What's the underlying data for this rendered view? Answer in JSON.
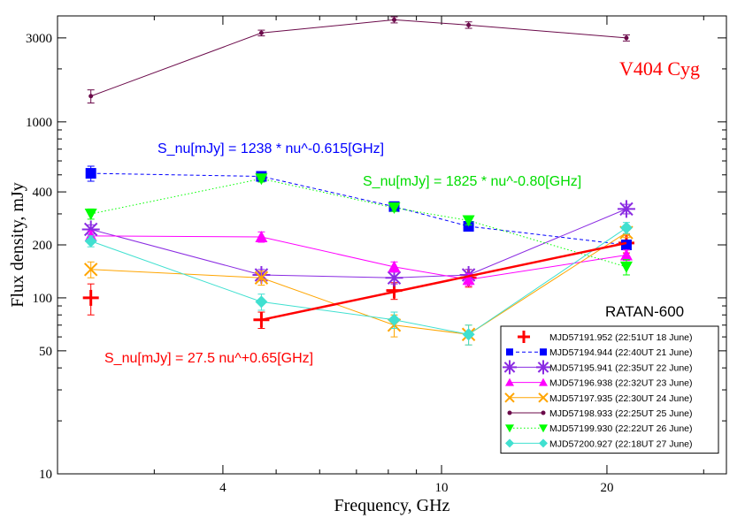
{
  "chart_data": {
    "type": "scatter",
    "title": "",
    "xlabel": "Frequency,  GHz",
    "ylabel": "Flux density, mJy",
    "x_scale": "log",
    "y_scale": "log",
    "xlim": [
      2.0,
      33.0
    ],
    "ylim": [
      10,
      4000
    ],
    "x_ticks": [
      4,
      10,
      20
    ],
    "y_ticks": [
      10,
      50,
      100,
      200,
      400,
      1000,
      3000
    ],
    "x_tick_labels": [
      "4",
      "10",
      "20"
    ],
    "y_tick_labels": [
      "10",
      "50",
      "100",
      "200",
      "400",
      "1000",
      "3000"
    ],
    "grid": false,
    "legend_position": "bottom-right",
    "annotations": {
      "source": "V404 Cyg",
      "telescope": "RATAN-600",
      "fit_blue": "S_nu[mJy] = 1238 * nu^-0.615[GHz]",
      "fit_green": "S_nu[mJy] = 1825 * nu^-0.80[GHz]",
      "fit_red": "S_nu[mJy]  = 27.5 nu^+0.65[GHz]"
    },
    "series": [
      {
        "name": "MJD57191.952 (22:51UT 18 June)",
        "color": "#ff0000",
        "marker": "plus",
        "line": "none",
        "x": [
          2.3,
          4.7,
          8.2,
          11.2,
          21.7
        ],
        "y": [
          100,
          75,
          110,
          130,
          205
        ],
        "err": [
          20,
          8,
          12,
          15,
          25
        ]
      },
      {
        "name": "MJD57194.944 (22:40UT 21 June)",
        "color": "#0000ff",
        "marker": "square",
        "line": "dashed",
        "x": [
          2.3,
          4.7,
          8.2,
          11.2,
          21.7
        ],
        "y": [
          510,
          490,
          330,
          255,
          200
        ],
        "err": [
          50,
          25,
          15,
          12,
          12
        ]
      },
      {
        "name": "MJD57195.941 (22:35UT 22 June)",
        "color": "#8a2be2",
        "marker": "asterisk",
        "line": "solid",
        "x": [
          2.3,
          4.7,
          8.2,
          11.2,
          21.7
        ],
        "y": [
          245,
          135,
          130,
          135,
          320
        ],
        "err": [
          15,
          10,
          10,
          10,
          20
        ]
      },
      {
        "name": "MJD57196.938 (22:32UT 23 June)",
        "color": "#ff00ff",
        "marker": "triangle-up",
        "line": "solid",
        "x": [
          2.3,
          4.7,
          8.2,
          11.2,
          21.7
        ],
        "y": [
          225,
          222,
          150,
          127,
          175
        ],
        "err": [
          15,
          15,
          10,
          10,
          12
        ]
      },
      {
        "name": "MJD57197.935 (22:30UT 24 June)",
        "color": "#ffa500",
        "marker": "cross",
        "line": "solid",
        "x": [
          2.3,
          4.7,
          8.2,
          11.2,
          21.7
        ],
        "y": [
          145,
          130,
          70,
          62,
          235
        ],
        "err": [
          15,
          12,
          10,
          8,
          15
        ]
      },
      {
        "name": "MJD57198.933 (22:25UT 25 June)",
        "color": "#6b0a4a",
        "marker": "dot",
        "line": "solid",
        "x": [
          2.3,
          4.7,
          8.2,
          11.2,
          21.7
        ],
        "y": [
          1400,
          3200,
          3800,
          3550,
          3000
        ],
        "err": [
          120,
          120,
          150,
          150,
          120
        ]
      },
      {
        "name": "MJD57199.930 (22:22UT 26 June)",
        "color": "#00ff00",
        "marker": "triangle-down",
        "line": "dotted",
        "x": [
          2.3,
          4.7,
          8.2,
          11.2,
          21.7
        ],
        "y": [
          300,
          475,
          325,
          275,
          150
        ],
        "err": [
          20,
          20,
          15,
          15,
          15
        ]
      },
      {
        "name": "MJD57200.927 (22:18UT 27 June)",
        "color": "#40e0d0",
        "marker": "diamond",
        "line": "solid",
        "x": [
          2.3,
          4.7,
          8.2,
          11.2,
          21.7
        ],
        "y": [
          210,
          95,
          75,
          62,
          250
        ],
        "err": [
          15,
          10,
          8,
          8,
          18
        ]
      }
    ],
    "fit_line_red": {
      "x": [
        4.7,
        21.7
      ],
      "y": [
        75,
        205
      ]
    }
  }
}
